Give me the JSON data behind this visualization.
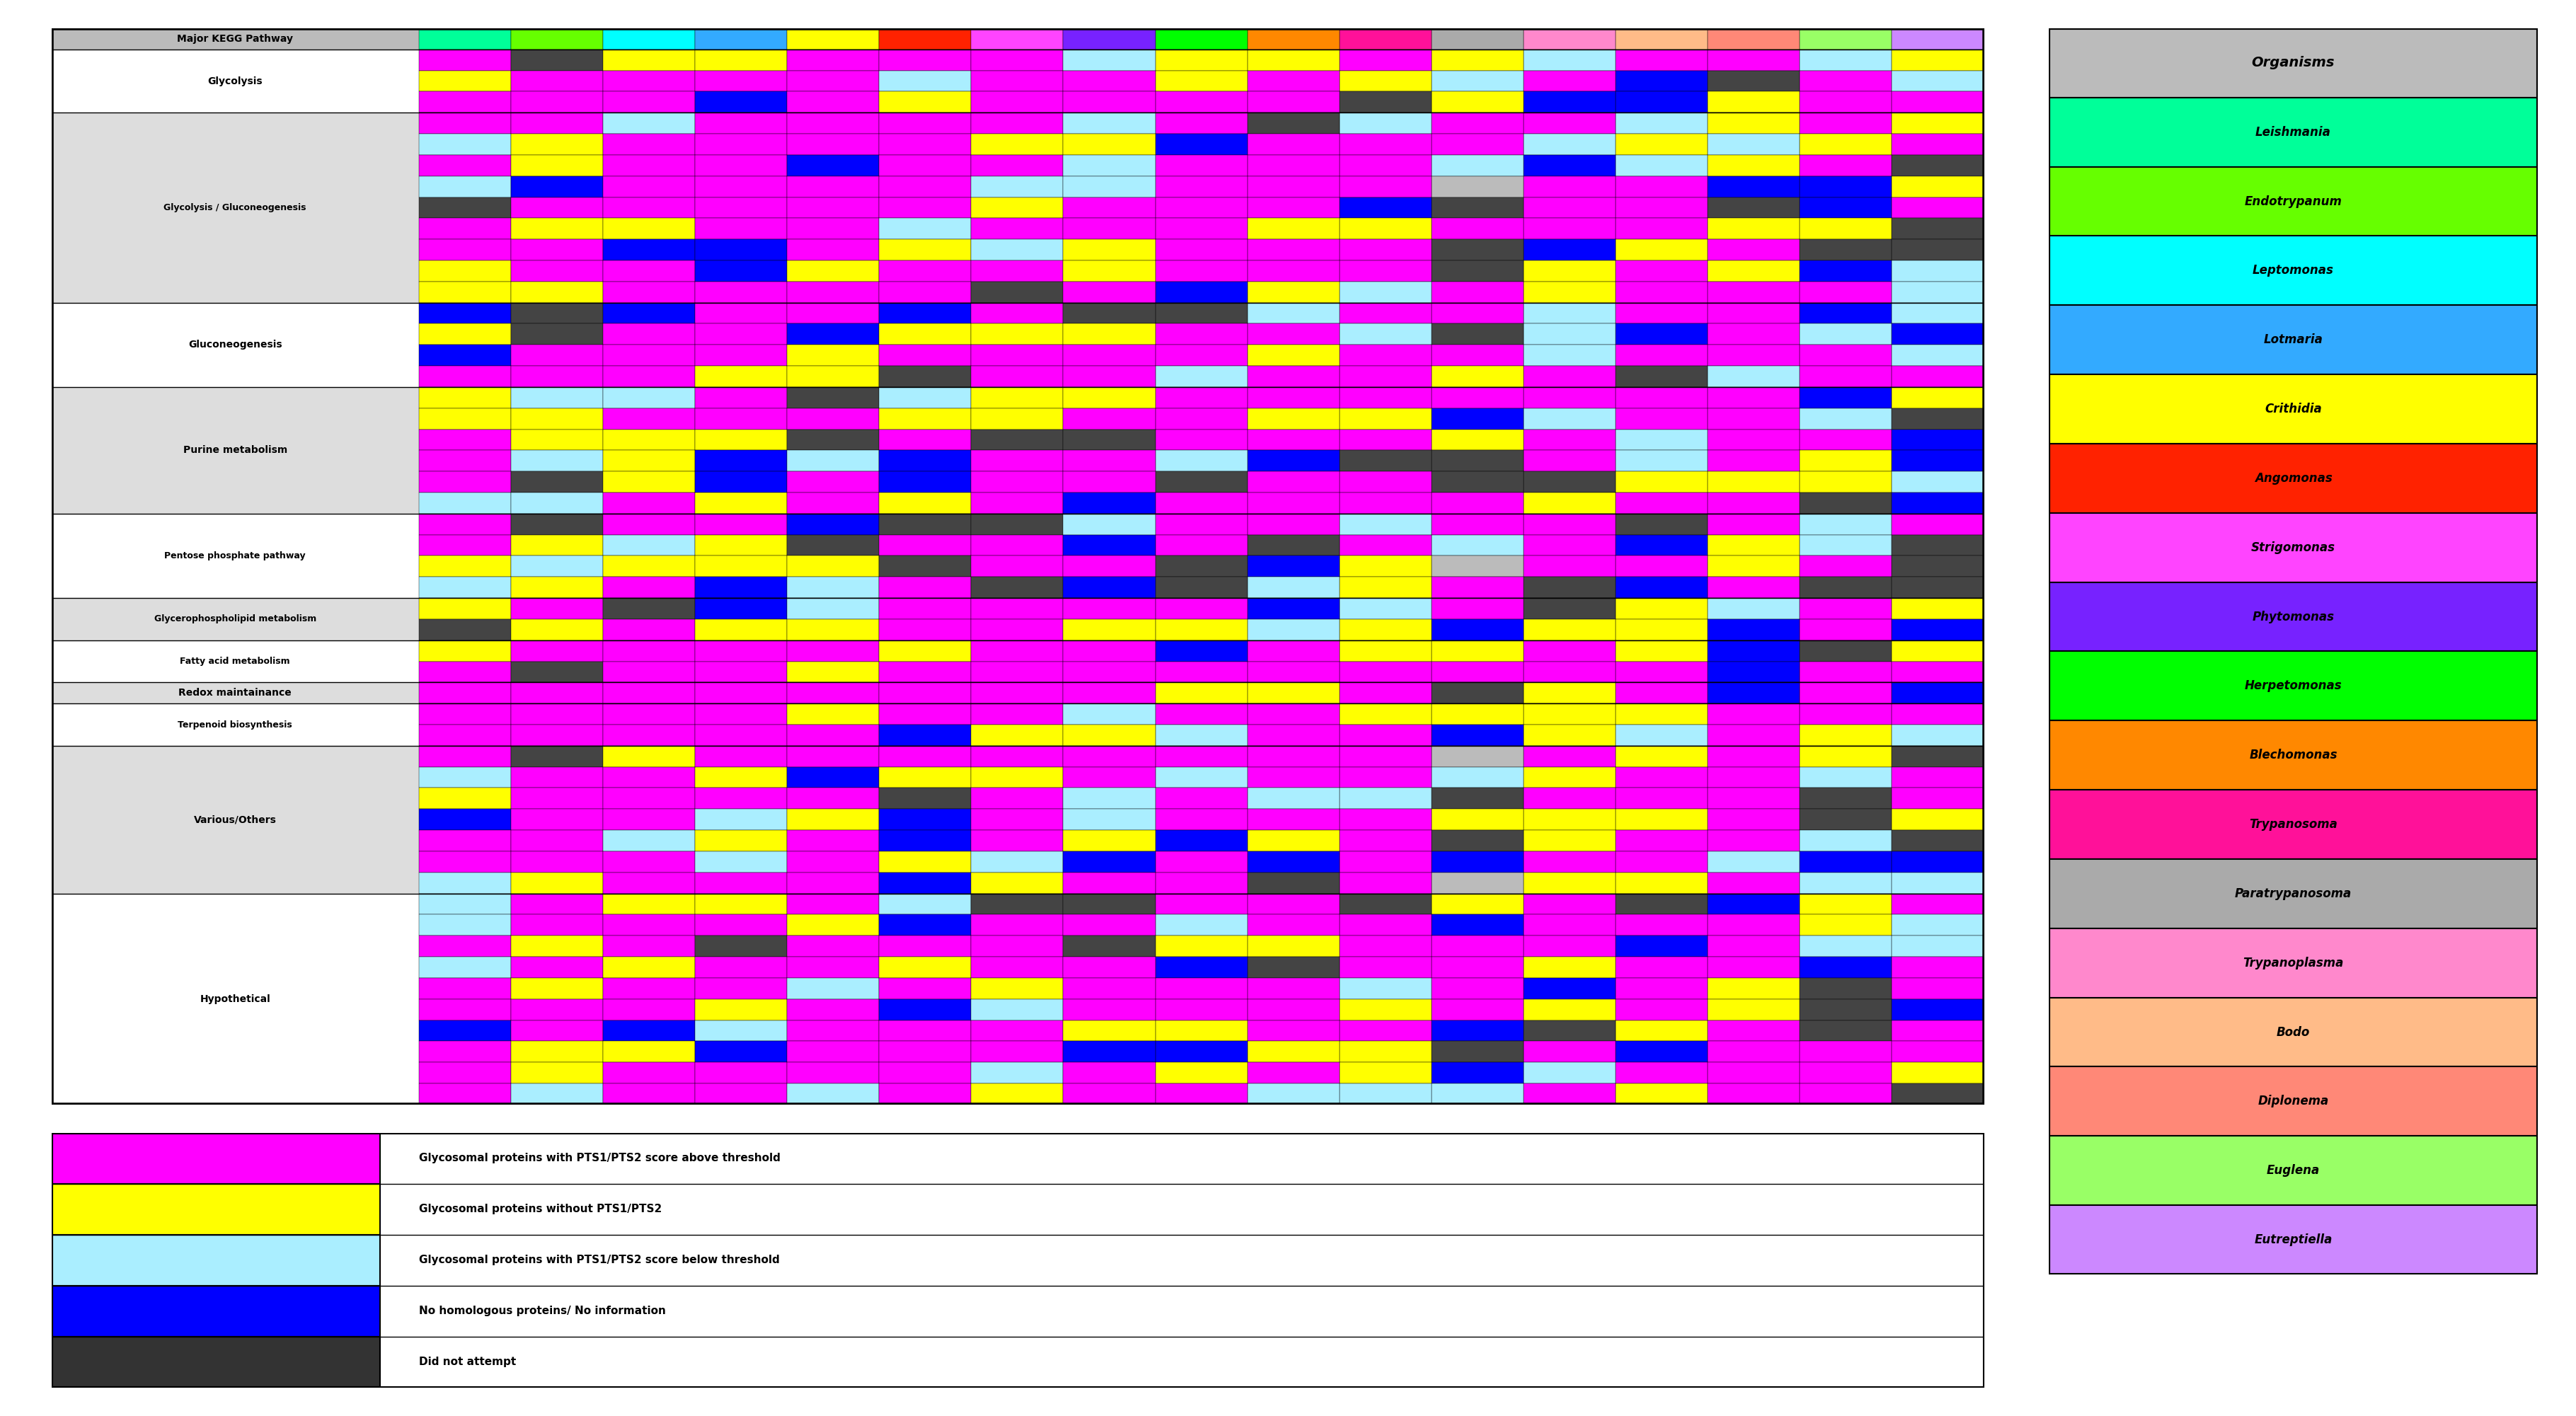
{
  "organisms": [
    "Leishmania",
    "Endotrypanum",
    "Leptomonas",
    "Lotmaria",
    "Crithidia",
    "Angomonas",
    "Strigomonas",
    "Phytomonas",
    "Herpetomonas",
    "Blechomonas",
    "Trypanosoma",
    "Paratrypanosoma",
    "Trypanoplasma",
    "Bodo",
    "Diplonema",
    "Euglena",
    "Eutreptiella"
  ],
  "organism_colors": [
    "#00FF99",
    "#66FF00",
    "#00FFFF",
    "#33AAFF",
    "#FFFF00",
    "#FF2200",
    "#FF44FF",
    "#7722FF",
    "#00FF00",
    "#FF8800",
    "#FF1199",
    "#AAAAAA",
    "#FF88CC",
    "#FFBB88",
    "#FF8877",
    "#99FF66",
    "#CC88FF"
  ],
  "pathway_groups": [
    {
      "name": "Major KEGG Pathway",
      "rows": 1,
      "bg": "#BBBBBB"
    },
    {
      "name": "Glycolysis",
      "rows": 3,
      "bg": "#FFFFFF"
    },
    {
      "name": "Glycolysis / Gluconeogenesis",
      "rows": 9,
      "bg": "#DDDDDD"
    },
    {
      "name": "Gluconeogenesis",
      "rows": 4,
      "bg": "#FFFFFF"
    },
    {
      "name": "Purine metabolism",
      "rows": 6,
      "bg": "#DDDDDD"
    },
    {
      "name": "Pentose phosphate pathway",
      "rows": 4,
      "bg": "#FFFFFF"
    },
    {
      "name": "Glycerophospholipid metabolism",
      "rows": 2,
      "bg": "#DDDDDD"
    },
    {
      "name": "Fatty acid metabolism",
      "rows": 2,
      "bg": "#FFFFFF"
    },
    {
      "name": "Redox maintainance",
      "rows": 1,
      "bg": "#DDDDDD"
    },
    {
      "name": "Terpenoid biosynthesis",
      "rows": 2,
      "bg": "#FFFFFF"
    },
    {
      "name": "Various/Others",
      "rows": 7,
      "bg": "#DDDDDD"
    },
    {
      "name": "Hypothetical",
      "rows": 10,
      "bg": "#FFFFFF"
    }
  ],
  "colors": {
    "magenta": "#FF00FF",
    "yellow": "#FFFF00",
    "cyan": "#00FFFF",
    "blue": "#0000FF",
    "dark": "#333333",
    "gray_header": "#BBBBBB",
    "white": "#FFFFFF"
  },
  "legend_items": [
    {
      "color": "#FF00FF",
      "label": "Glycosomal proteins with PTS1/PTS2 score above threshold"
    },
    {
      "color": "#FFFF00",
      "label": "Glycosomal proteins without PTS1/PTS2"
    },
    {
      "color": "#AAEEFF",
      "label": "Glycosomal proteins with PTS1/PTS2 score below threshold"
    },
    {
      "color": "#0000FF",
      "label": "No homologous proteins/ No information"
    },
    {
      "color": "#333333",
      "label": "Did not attempt"
    }
  ]
}
